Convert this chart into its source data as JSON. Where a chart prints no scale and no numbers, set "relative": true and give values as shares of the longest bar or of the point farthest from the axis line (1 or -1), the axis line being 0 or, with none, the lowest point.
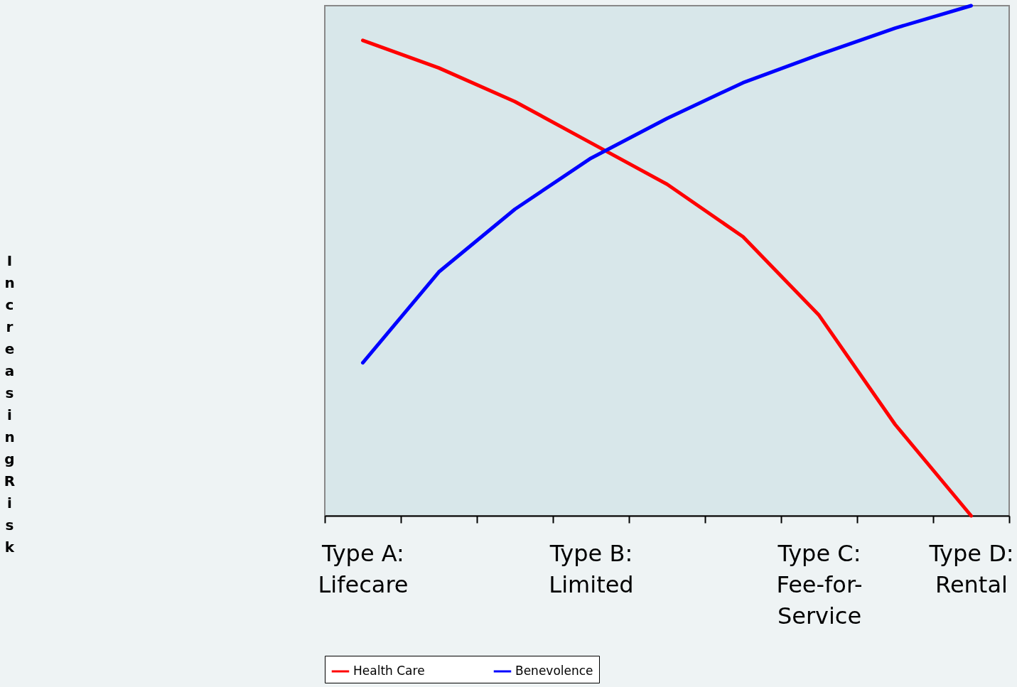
{
  "chart_data": {
    "type": "line",
    "relative": true,
    "ylabel": "Increasing Risk",
    "legend": "bottom",
    "grid": false,
    "marker": "none",
    "line_style": "solid",
    "categories": [
      "Type A:\nLifecare",
      null,
      null,
      "Type B:\nLimited",
      null,
      null,
      "Type C:\nFee-for-\nService",
      null,
      "Type D:\nRental"
    ],
    "series": [
      {
        "name": "Health Care",
        "color": "#ff0000",
        "values": [
          0.932,
          0.878,
          0.812,
          0.731,
          0.65,
          0.547,
          0.393,
          0.179,
          0
        ]
      },
      {
        "name": "Benevolence",
        "color": "#0000ff",
        "values": [
          0.3,
          0.478,
          0.601,
          0.701,
          0.779,
          0.849,
          0.904,
          0.956,
          1
        ]
      }
    ]
  }
}
